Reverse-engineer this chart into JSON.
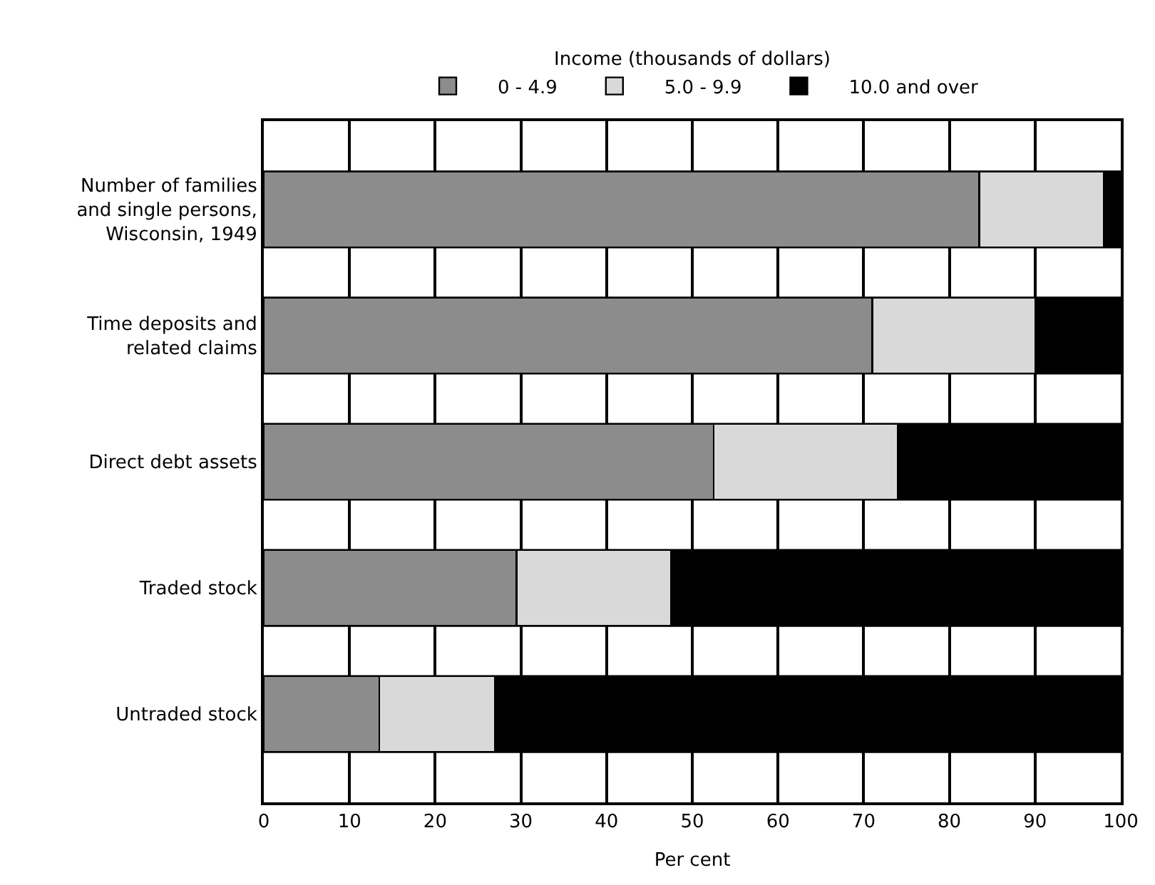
{
  "chart_data": {
    "type": "bar",
    "orientation": "horizontal",
    "stacked": true,
    "categories": [
      "Number of families and single persons, Wisconsin, 1949",
      "Time deposits and related claims",
      "Direct debt assets",
      "Traded stock",
      "Untraded stock"
    ],
    "series": [
      {
        "name": "0 - 4.9",
        "color": "#8c8c8c",
        "values": [
          83.5,
          71,
          52.5,
          29.5,
          13.5
        ]
      },
      {
        "name": "5.0 - 9.9",
        "color": "#d9d9d9",
        "values": [
          14.5,
          19,
          21.5,
          18,
          13.5
        ]
      },
      {
        "name": "10.0 and over",
        "color": "#000000",
        "values": [
          2,
          10,
          26,
          52.5,
          73
        ]
      }
    ],
    "legend_title": "Income (thousands of dollars)",
    "legend": "top",
    "xlabel": "Per cent",
    "xlim": [
      0,
      100
    ],
    "xticks": [
      0,
      10,
      20,
      30,
      40,
      50,
      60,
      70,
      80,
      90,
      100
    ],
    "grid": true
  }
}
